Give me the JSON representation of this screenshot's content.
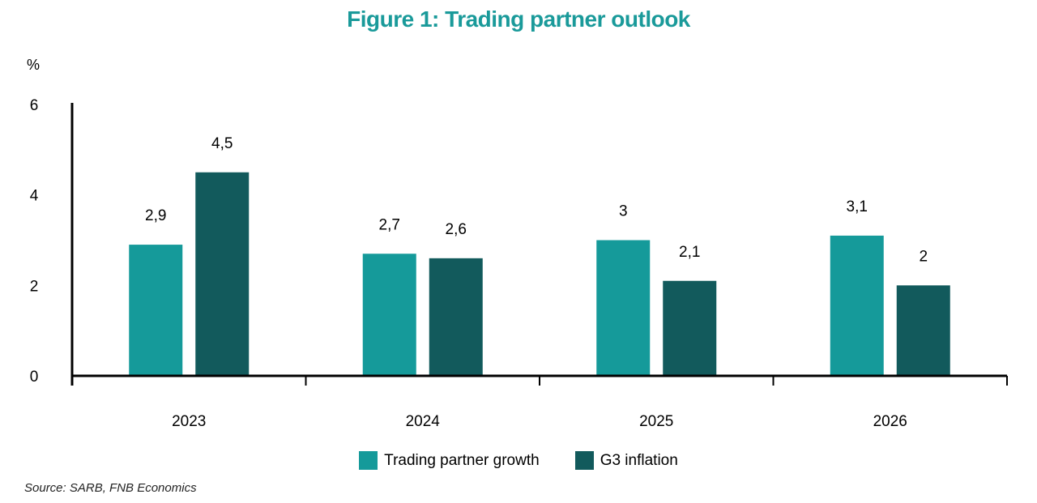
{
  "colors": {
    "title": "#1a9a9a",
    "growth": "#159a9a",
    "inflation": "#125a5c",
    "axis": "#000000"
  },
  "chart_data": {
    "type": "bar",
    "title": "Figure 1: Trading partner outlook",
    "ylabel": "%",
    "xlabel": "",
    "ylim": [
      0,
      6
    ],
    "yticks": [
      0,
      2,
      4,
      6
    ],
    "categories": [
      "2023",
      "2024",
      "2025",
      "2026"
    ],
    "series": [
      {
        "name": "Trading partner growth",
        "values": [
          2.9,
          2.7,
          3.0,
          3.1
        ],
        "labels": [
          "2,9",
          "2,7",
          "3",
          "3,1"
        ]
      },
      {
        "name": "G3 inflation",
        "values": [
          4.5,
          2.6,
          2.1,
          2.0
        ],
        "labels": [
          "4,5",
          "2,6",
          "2,1",
          "2"
        ]
      }
    ],
    "legend": "bottom-center",
    "grid": false
  },
  "source": "Source: SARB, FNB Economics"
}
